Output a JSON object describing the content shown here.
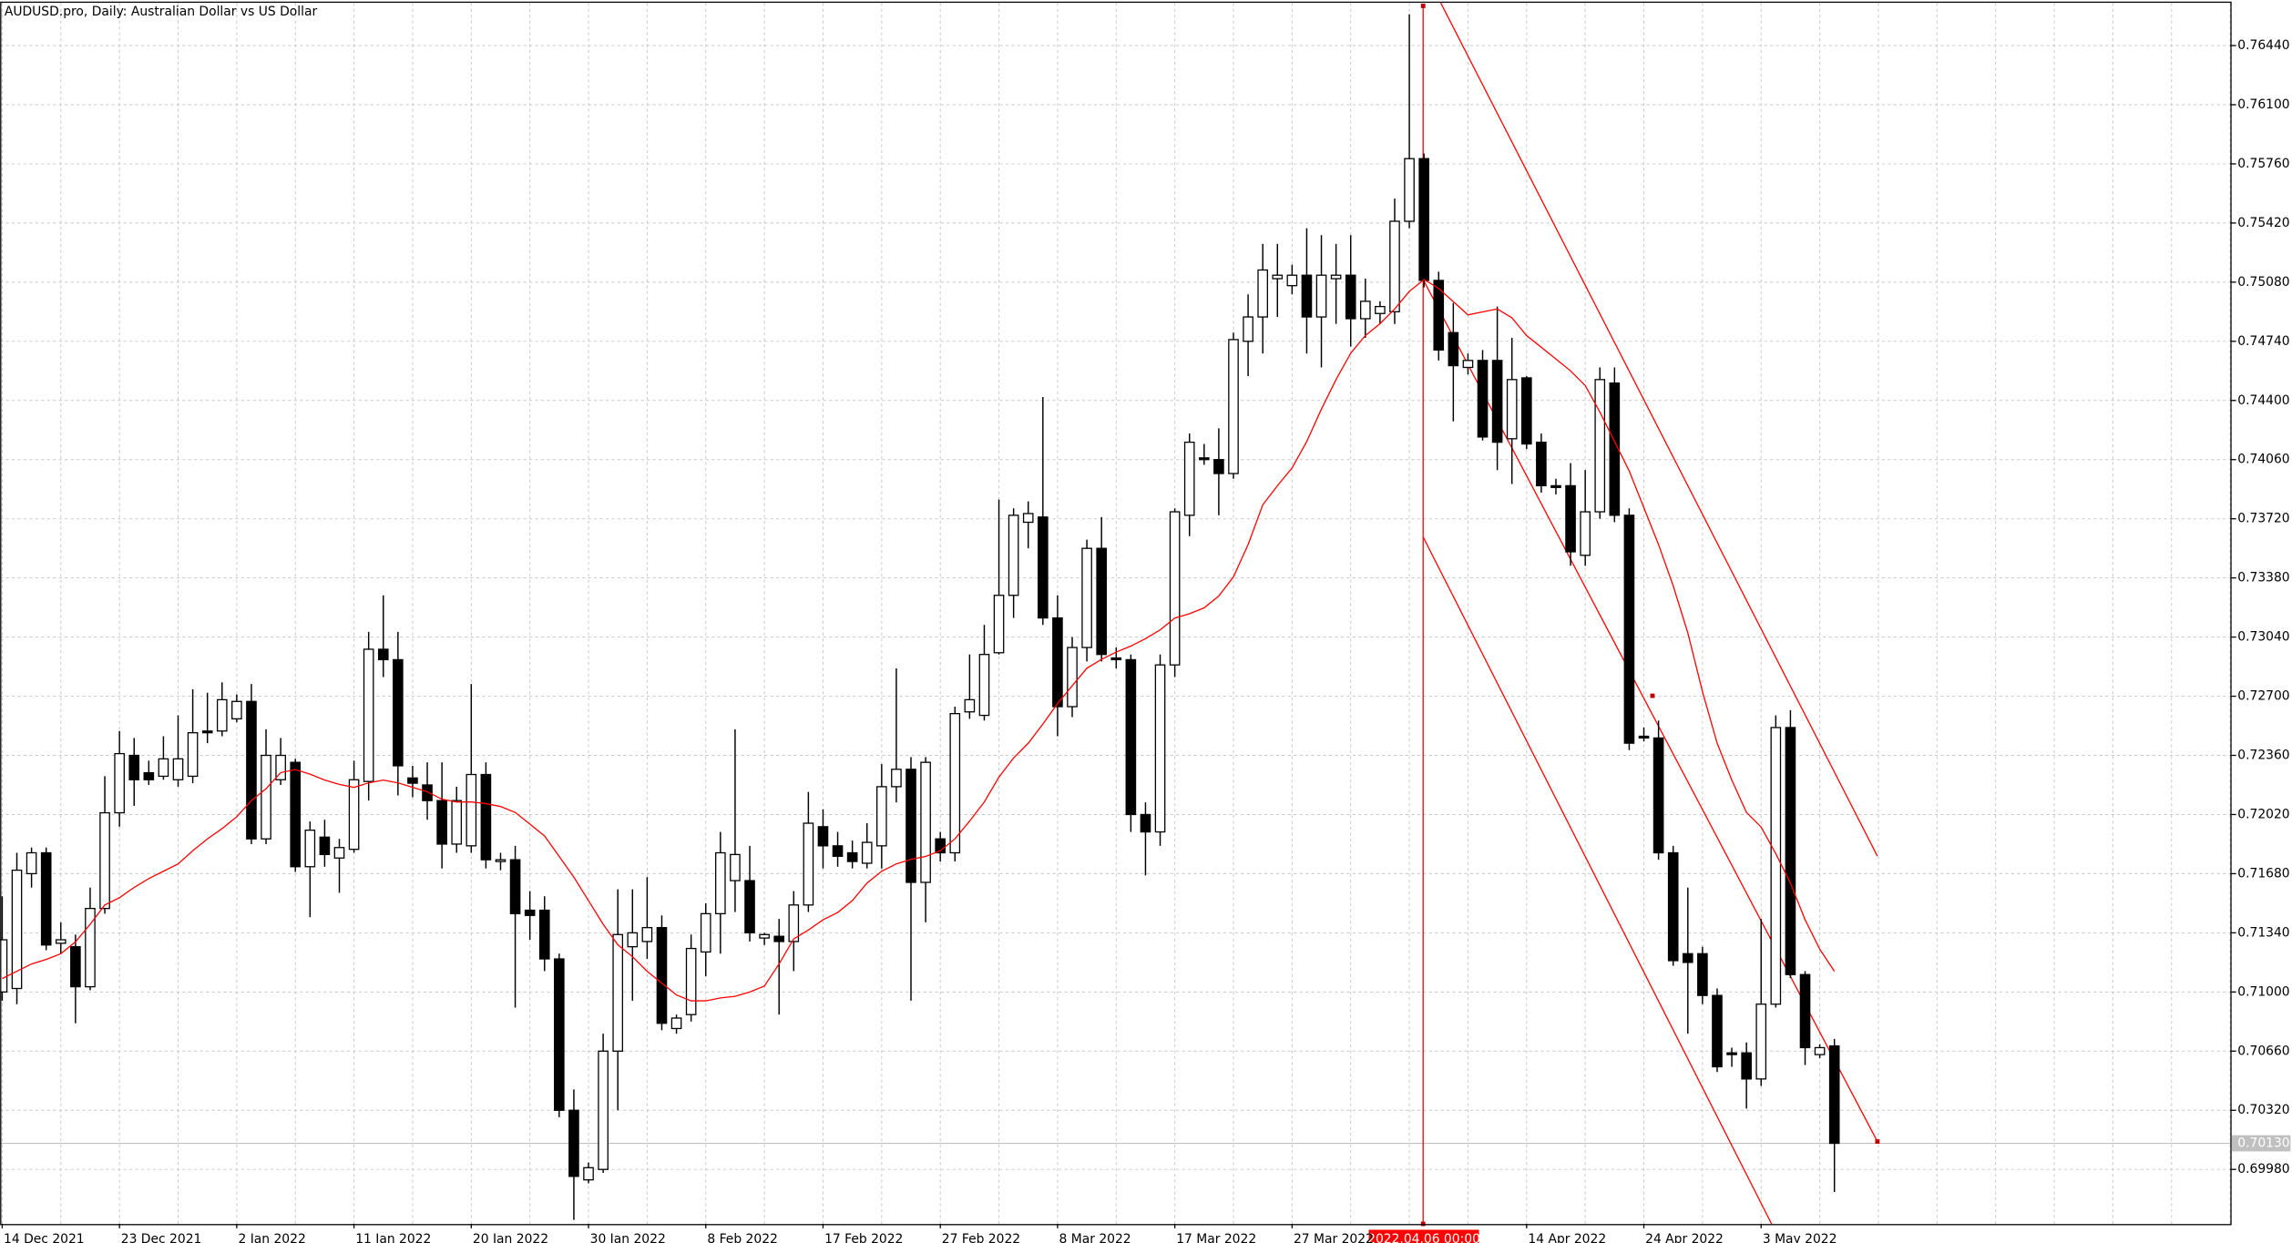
{
  "chart_data": {
    "type": "candlestick",
    "title": "AUDUSD.pro, Daily:  Australian Dollar vs US Dollar",
    "crosshair_label": "2022.04.06 00:00",
    "current_price": {
      "value": 0.7013,
      "label": "0.70130"
    },
    "up_color": "#ffffff",
    "down_color": "#000000",
    "wick_color": "#000000",
    "grid": true,
    "categories": [
      "14 Dec 2021",
      null,
      null,
      null,
      null,
      null,
      null,
      null,
      "23 Dec 2021",
      null,
      null,
      null,
      null,
      null,
      null,
      null,
      "2 Jan 2022",
      null,
      null,
      null,
      null,
      null,
      null,
      null,
      "11 Jan 2022",
      null,
      null,
      null,
      null,
      null,
      null,
      null,
      "20 Jan 2022",
      null,
      null,
      null,
      null,
      null,
      null,
      null,
      "30 Jan 2022",
      null,
      null,
      null,
      null,
      null,
      null,
      null,
      "8 Feb 2022",
      null,
      null,
      null,
      null,
      null,
      null,
      null,
      "17 Feb 2022",
      null,
      null,
      null,
      null,
      null,
      null,
      null,
      "27 Feb 2022",
      null,
      null,
      null,
      null,
      null,
      null,
      null,
      "8 Mar 2022",
      null,
      null,
      null,
      null,
      null,
      null,
      null,
      "17 Mar 2022",
      null,
      null,
      null,
      null,
      null,
      null,
      null,
      "27 Mar 2022",
      null,
      null,
      null,
      null,
      null,
      null,
      null,
      null,
      null,
      null,
      null,
      null,
      null,
      null,
      null,
      "14 Apr 2022",
      null,
      null,
      null,
      null,
      null,
      null,
      null,
      "24 Apr 2022",
      null,
      null,
      null,
      null,
      null,
      null,
      null,
      "3 May 2022",
      null,
      null,
      null,
      null,
      null
    ],
    "open": [
      0.71,
      0.7102,
      0.7168,
      0.718,
      0.7128,
      0.7126,
      0.7103,
      0.7148,
      0.7203,
      0.7236,
      0.7226,
      0.7224,
      0.7222,
      0.7224,
      0.725,
      0.725,
      0.7257,
      0.7267,
      0.7188,
      0.7222,
      0.7232,
      0.7172,
      0.7189,
      0.7177,
      0.7182,
      0.7221,
      0.7297,
      0.7291,
      0.7223,
      0.7219,
      0.721,
      0.7185,
      0.7184,
      0.7225,
      0.7175,
      0.7176,
      0.7147,
      0.7147,
      0.7119,
      0.7032,
      0.6992,
      0.6998,
      0.7066,
      0.7126,
      0.7129,
      0.7137,
      0.7079,
      0.7087,
      0.7123,
      0.7145,
      0.7164,
      0.7164,
      0.7131,
      0.7132,
      0.7129,
      0.715,
      0.7195,
      0.7184,
      0.718,
      0.7174,
      0.7184,
      0.7218,
      0.7228,
      0.7163,
      0.7188,
      0.718,
      0.7261,
      0.7259,
      0.7295,
      0.7328,
      0.737,
      0.7373,
      0.7315,
      0.7264,
      0.7298,
      0.7355,
      0.7292,
      0.7291,
      0.7202,
      0.7192,
      0.7288,
      0.7374,
      0.7407,
      0.7406,
      0.7398,
      0.7474,
      0.7488,
      0.751,
      0.7506,
      0.7512,
      0.7488,
      0.751,
      0.7512,
      0.7487,
      0.749,
      0.7491,
      0.7543,
      0.7579,
      0.7509,
      0.7479,
      0.7459,
      0.7463,
      0.7463,
      0.7418,
      0.7453,
      0.7416,
      0.7391,
      0.7391,
      0.7351,
      0.7376,
      0.745,
      0.7374,
      0.7247,
      0.7246,
      0.718,
      0.7122,
      0.7122,
      0.7098,
      0.7065,
      0.7065,
      0.705,
      0.7093,
      0.7252,
      0.711,
      0.7064,
      0.7069
    ],
    "high": [
      0.7155,
      0.718,
      0.7183,
      0.7183,
      0.714,
      0.7133,
      0.716,
      0.7224,
      0.725,
      0.7246,
      0.7233,
      0.7247,
      0.7259,
      0.7274,
      0.7272,
      0.7278,
      0.7271,
      0.7277,
      0.7251,
      0.7246,
      0.7234,
      0.7198,
      0.7199,
      0.7188,
      0.7233,
      0.7307,
      0.7328,
      0.7307,
      0.723,
      0.7232,
      0.7232,
      0.7218,
      0.7277,
      0.7232,
      0.718,
      0.7184,
      0.7158,
      0.7155,
      0.7122,
      0.7044,
      0.7002,
      0.7076,
      0.7159,
      0.7159,
      0.7166,
      0.7144,
      0.7087,
      0.7133,
      0.7151,
      0.7192,
      0.7251,
      0.7184,
      0.7134,
      0.7142,
      0.7158,
      0.7215,
      0.7205,
      0.7192,
      0.7187,
      0.7197,
      0.7231,
      0.7286,
      0.7235,
      0.7235,
      0.7192,
      0.7264,
      0.7294,
      0.7311,
      0.7383,
      0.7378,
      0.7382,
      0.7442,
      0.7328,
      0.7304,
      0.736,
      0.7373,
      0.7298,
      0.7294,
      0.7209,
      0.7294,
      0.7378,
      0.7421,
      0.7415,
      0.7424,
      0.7479,
      0.7501,
      0.753,
      0.753,
      0.7518,
      0.7539,
      0.7535,
      0.753,
      0.7535,
      0.751,
      0.7497,
      0.7556,
      0.7662,
      0.7582,
      0.7514,
      0.7496,
      0.7467,
      0.7469,
      0.7494,
      0.7476,
      0.7454,
      0.7421,
      0.7395,
      0.7404,
      0.74,
      0.7459,
      0.7459,
      0.7378,
      0.7252,
      0.7256,
      0.7184,
      0.716,
      0.7126,
      0.7102,
      0.7068,
      0.7071,
      0.7142,
      0.7259,
      0.7262,
      0.7112,
      0.707,
      0.7073
    ],
    "low": [
      0.7095,
      0.7093,
      0.716,
      0.7124,
      0.7122,
      0.7082,
      0.7101,
      0.7145,
      0.7195,
      0.7207,
      0.7219,
      0.7222,
      0.7218,
      0.722,
      0.7243,
      0.7247,
      0.7255,
      0.7185,
      0.7185,
      0.7219,
      0.7169,
      0.7143,
      0.7172,
      0.7157,
      0.718,
      0.721,
      0.7281,
      0.7213,
      0.7212,
      0.7199,
      0.7171,
      0.718,
      0.718,
      0.7171,
      0.717,
      0.7091,
      0.713,
      0.7112,
      0.7028,
      0.6969,
      0.699,
      0.6996,
      0.7032,
      0.7095,
      0.7119,
      0.7078,
      0.7076,
      0.7083,
      0.7109,
      0.7122,
      0.7146,
      0.7129,
      0.7127,
      0.7087,
      0.7112,
      0.7146,
      0.7171,
      0.7172,
      0.7171,
      0.7171,
      0.7171,
      0.7209,
      0.7095,
      0.714,
      0.7175,
      0.7175,
      0.7257,
      0.7256,
      0.7294,
      0.7315,
      0.7355,
      0.7311,
      0.7247,
      0.7258,
      0.729,
      0.729,
      0.7286,
      0.7192,
      0.7167,
      0.7184,
      0.7281,
      0.7362,
      0.7403,
      0.7374,
      0.7395,
      0.7454,
      0.7467,
      0.7488,
      0.7501,
      0.7467,
      0.7459,
      0.7484,
      0.7471,
      0.7476,
      0.7484,
      0.7484,
      0.7539,
      0.7505,
      0.7463,
      0.7428,
      0.7455,
      0.7417,
      0.74,
      0.7392,
      0.7412,
      0.7387,
      0.7386,
      0.7345,
      0.7345,
      0.7372,
      0.737,
      0.7239,
      0.7244,
      0.7176,
      0.7115,
      0.7076,
      0.7093,
      0.7054,
      0.7057,
      0.7033,
      0.7046,
      0.7091,
      0.7108,
      0.7058,
      0.7062,
      0.6985
    ],
    "close": [
      0.713,
      0.717,
      0.718,
      0.7127,
      0.713,
      0.7103,
      0.7148,
      0.7203,
      0.7237,
      0.7222,
      0.7222,
      0.7234,
      0.7234,
      0.7249,
      0.7249,
      0.7268,
      0.7267,
      0.7188,
      0.7236,
      0.7236,
      0.7172,
      0.7193,
      0.7179,
      0.7183,
      0.7222,
      0.7297,
      0.7291,
      0.723,
      0.722,
      0.721,
      0.7185,
      0.721,
      0.7225,
      0.7176,
      0.7176,
      0.7145,
      0.7144,
      0.7119,
      0.7032,
      0.6994,
      0.6999,
      0.7066,
      0.7133,
      0.7134,
      0.7137,
      0.7082,
      0.7085,
      0.7125,
      0.7145,
      0.718,
      0.7179,
      0.7134,
      0.7133,
      0.7129,
      0.715,
      0.7197,
      0.7184,
      0.7178,
      0.7175,
      0.7186,
      0.7218,
      0.7228,
      0.7163,
      0.7232,
      0.718,
      0.726,
      0.7268,
      0.7294,
      0.7328,
      0.7374,
      0.7375,
      0.7315,
      0.7264,
      0.7298,
      0.7355,
      0.7294,
      0.7291,
      0.7202,
      0.7192,
      0.7288,
      0.7376,
      0.7416,
      0.7406,
      0.7398,
      0.7475,
      0.7488,
      0.7515,
      0.7512,
      0.7512,
      0.7488,
      0.7512,
      0.7512,
      0.7487,
      0.7497,
      0.7494,
      0.7543,
      0.7579,
      0.7509,
      0.7469,
      0.746,
      0.7463,
      0.7419,
      0.7416,
      0.7452,
      0.7415,
      0.7391,
      0.739,
      0.7353,
      0.7376,
      0.7452,
      0.7374,
      0.7243,
      0.7246,
      0.718,
      0.7118,
      0.7117,
      0.7098,
      0.7057,
      0.7064,
      0.705,
      0.7093,
      0.7252,
      0.711,
      0.7068,
      0.7068,
      0.7013
    ],
    "overlay": {
      "color": "#ff0000",
      "values": [
        0.71077,
        0.71119,
        0.71161,
        0.71187,
        0.7122,
        0.71288,
        0.71389,
        0.715,
        0.71542,
        0.71601,
        0.71652,
        0.71694,
        0.71736,
        0.71812,
        0.7188,
        0.71939,
        0.72007,
        0.721,
        0.72168,
        0.72261,
        0.72278,
        0.72252,
        0.72218,
        0.72193,
        0.72176,
        0.72202,
        0.72218,
        0.72202,
        0.72176,
        0.72151,
        0.72108,
        0.72092,
        0.72092,
        0.72083,
        0.72066,
        0.72032,
        0.71965,
        0.71897,
        0.71779,
        0.7166,
        0.71525,
        0.71389,
        0.71271,
        0.71203,
        0.71119,
        0.71051,
        0.70983,
        0.70949,
        0.70949,
        0.70966,
        0.70975,
        0.71,
        0.71034,
        0.71161,
        0.71305,
        0.71356,
        0.71415,
        0.71457,
        0.71525,
        0.71626,
        0.71694,
        0.71736,
        0.71762,
        0.71779,
        0.71812,
        0.7188,
        0.71982,
        0.72092,
        0.72235,
        0.72345,
        0.7243,
        0.7254,
        0.72658,
        0.7276,
        0.72861,
        0.72912,
        0.72954,
        0.72988,
        0.73031,
        0.73081,
        0.73149,
        0.73174,
        0.73208,
        0.73276,
        0.73386,
        0.73572,
        0.738,
        0.7391,
        0.74012,
        0.74164,
        0.7435,
        0.7452,
        0.74672,
        0.74773,
        0.74841,
        0.74926,
        0.75027,
        0.75095,
        0.75044,
        0.74968,
        0.74892,
        0.74909,
        0.74926,
        0.74875,
        0.74773,
        0.74706,
        0.74638,
        0.7457,
        0.74486,
        0.74333,
        0.74164,
        0.73995,
        0.73784,
        0.73572,
        0.73335,
        0.73064,
        0.72726,
        0.7243,
        0.72218,
        0.72032,
        0.71948,
        0.71795,
        0.71626,
        0.71415,
        0.71246,
        0.71119
      ]
    },
    "ylim": [
      0.69667,
      0.76685
    ],
    "yticks": [
      {
        "value": 0.7644,
        "label": "0.76440"
      },
      {
        "value": 0.761,
        "label": "0.76100"
      },
      {
        "value": 0.7576,
        "label": "0.75760"
      },
      {
        "value": 0.7542,
        "label": "0.75420"
      },
      {
        "value": 0.7508,
        "label": "0.75080"
      },
      {
        "value": 0.7474,
        "label": "0.74740"
      },
      {
        "value": 0.744,
        "label": "0.74400"
      },
      {
        "value": 0.7406,
        "label": "0.74060"
      },
      {
        "value": 0.7372,
        "label": "0.73720"
      },
      {
        "value": 0.7338,
        "label": "0.73380"
      },
      {
        "value": 0.7304,
        "label": "0.73040"
      },
      {
        "value": 0.727,
        "label": "0.72700"
      },
      {
        "value": 0.7236,
        "label": "0.72360"
      },
      {
        "value": 0.7202,
        "label": "0.72020"
      },
      {
        "value": 0.7168,
        "label": "0.71680"
      },
      {
        "value": 0.7134,
        "label": "0.71340"
      },
      {
        "value": 0.71,
        "label": "0.71000"
      },
      {
        "value": 0.7066,
        "label": "0.70660"
      },
      {
        "value": 0.7032,
        "label": "0.70320"
      },
      {
        "value": 0.6998,
        "label": "0.69980"
      }
    ]
  }
}
